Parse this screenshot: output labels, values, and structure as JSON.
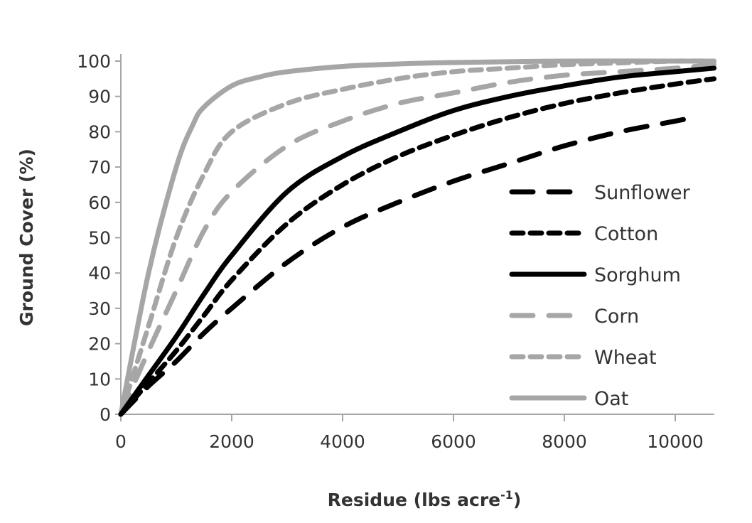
{
  "chart_data": {
    "type": "line",
    "title": "",
    "xlabel": "Residue (lbs acre",
    "xlabel_superscript": "-1",
    "xlabel_suffix": ")",
    "ylabel": "Ground Cover (%)",
    "xlim": [
      0,
      10700
    ],
    "ylim": [
      0,
      100
    ],
    "xticks": [
      0,
      2000,
      4000,
      6000,
      8000,
      10000
    ],
    "yticks": [
      0,
      10,
      20,
      30,
      40,
      50,
      60,
      70,
      80,
      90,
      100
    ],
    "grid": false,
    "legend_position": "right",
    "series": [
      {
        "name": "Sunflower",
        "color": "#000000",
        "dash": "long-dash",
        "x": [
          0,
          500,
          1000,
          1500,
          2000,
          3000,
          4000,
          5000,
          6000,
          7000,
          8000,
          9000,
          10000,
          10300
        ],
        "y": [
          0,
          8,
          15,
          23,
          30,
          43,
          53,
          60,
          66,
          71,
          76,
          80,
          83,
          84
        ]
      },
      {
        "name": "Cotton",
        "color": "#000000",
        "dash": "short-dash",
        "x": [
          0,
          500,
          1000,
          1500,
          2000,
          3000,
          4000,
          5000,
          6000,
          7000,
          8000,
          9000,
          10000,
          10700
        ],
        "y": [
          0,
          9,
          18,
          28,
          38,
          54,
          65,
          73,
          79,
          84,
          88,
          91,
          93.5,
          95
        ]
      },
      {
        "name": "Sorghum",
        "color": "#000000",
        "dash": "solid",
        "x": [
          0,
          500,
          1000,
          1500,
          2000,
          3000,
          4000,
          5000,
          6000,
          7000,
          8000,
          9000,
          10000,
          10700
        ],
        "y": [
          0,
          11,
          22,
          34,
          45,
          63,
          73,
          80,
          86,
          90,
          93,
          95.5,
          97,
          98
        ]
      },
      {
        "name": "Corn",
        "color": "#a6a6a6",
        "dash": "long-dash",
        "x": [
          0,
          500,
          1000,
          1500,
          2000,
          3000,
          4000,
          5000,
          6000,
          7000,
          8000,
          9000,
          10000,
          10700
        ],
        "y": [
          0,
          18,
          35,
          52,
          63,
          76,
          83,
          88,
          91,
          94,
          96,
          97,
          98,
          99
        ]
      },
      {
        "name": "Wheat",
        "color": "#a6a6a6",
        "dash": "short-dash",
        "x": [
          0,
          500,
          1000,
          1500,
          2000,
          3000,
          4000,
          5000,
          6000,
          7000,
          8000,
          9000,
          10000,
          10700
        ],
        "y": [
          0,
          25,
          50,
          68,
          80,
          88,
          92,
          95,
          97,
          98,
          99,
          99.5,
          100,
          100
        ]
      },
      {
        "name": "Oat",
        "color": "#a6a6a6",
        "dash": "solid",
        "x": [
          0,
          500,
          1000,
          1300,
          1500,
          2000,
          2500,
          3000,
          4000,
          5000,
          6000,
          8000,
          10000,
          10700
        ],
        "y": [
          0,
          40,
          70,
          82,
          87,
          93,
          95.5,
          97,
          98.5,
          99.2,
          99.6,
          100,
          100,
          100
        ]
      }
    ]
  }
}
